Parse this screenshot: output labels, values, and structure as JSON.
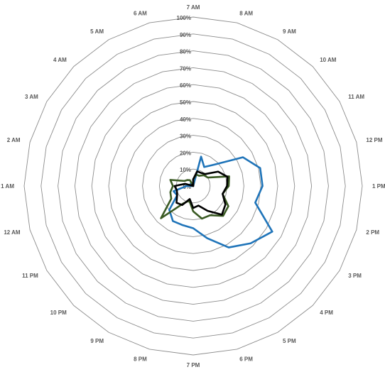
{
  "chart_data": {
    "type": "radar",
    "title": "",
    "categories": [
      "7 AM",
      "8 AM",
      "9 AM",
      "10 AM",
      "11 AM",
      "12 PM",
      "1 PM",
      "2 PM",
      "3 PM",
      "4 PM",
      "5 PM",
      "6 PM",
      "7 PM",
      "8 PM",
      "9 PM",
      "10 PM",
      "11 PM",
      "12 AM",
      "1 AM",
      "2 AM",
      "3 AM",
      "4 AM",
      "5 AM",
      "6 AM"
    ],
    "ring_labels": [
      "0%",
      "10%",
      "20%",
      "30%",
      "40%",
      "50%",
      "60%",
      "70%",
      "80%",
      "90%",
      "100%"
    ],
    "rlim": [
      0,
      100
    ],
    "grid": true,
    "legend": "none",
    "series": [
      {
        "color": "#1f74b9",
        "values": [
          0,
          18,
          13,
          18,
          34,
          41,
          41,
          38,
          54,
          48,
          42,
          32,
          25,
          24,
          24,
          20,
          11,
          12,
          4,
          0,
          2,
          2,
          1,
          0
        ]
      },
      {
        "color": "#3a5a23",
        "values": [
          4,
          7,
          7,
          9,
          10,
          22,
          21,
          18,
          24,
          25,
          20,
          20,
          15,
          9,
          12,
          27,
          15,
          14,
          12,
          14,
          6,
          5,
          4,
          0
        ]
      },
      {
        "color": "#000000",
        "values": [
          4,
          9,
          9,
          10,
          17,
          21,
          20,
          18,
          22,
          24,
          17,
          12,
          13,
          8,
          13,
          14,
          11,
          10,
          11,
          5,
          0,
          1,
          0,
          0
        ]
      }
    ]
  }
}
